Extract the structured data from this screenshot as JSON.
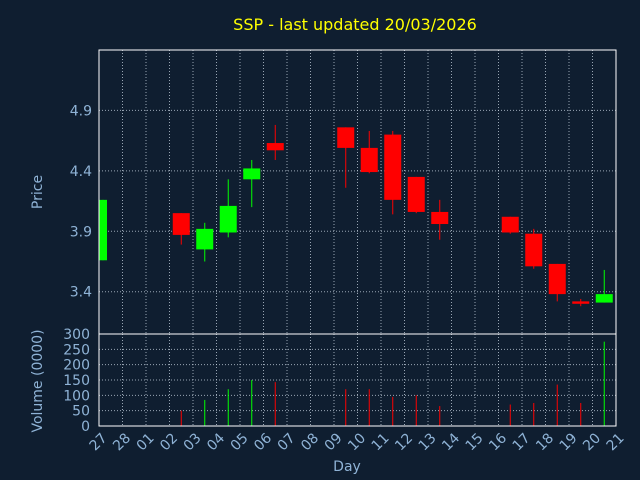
{
  "chart_data": {
    "type": "candlestick",
    "title": "SSP - last updated 20/03/2026",
    "xlabel": "Day",
    "ylabel": "Price",
    "volume_label": "Volume (0000)",
    "x_tick_labels": [
      "27",
      "28",
      "01",
      "02",
      "03",
      "04",
      "05",
      "06",
      "07",
      "08",
      "09",
      "10",
      "11",
      "12",
      "13",
      "14",
      "15",
      "16",
      "17",
      "18",
      "19",
      "20",
      "21"
    ],
    "price_ticks": [
      3.4,
      3.9,
      4.4,
      4.9
    ],
    "price_tick_labels": [
      "3.4",
      "3.9",
      "4.4",
      "4.9"
    ],
    "price_range": [
      3.05,
      5.4
    ],
    "volume_ticks": [
      0,
      50,
      100,
      150,
      200,
      250,
      300
    ],
    "volume_tick_labels": [
      "0",
      "50",
      "100",
      "150",
      "200",
      "250",
      "300"
    ],
    "volume_range": [
      0,
      300
    ],
    "grid": true,
    "colors": {
      "up": "#00ff00",
      "down": "#ff0000",
      "background": "#0f1e30",
      "title": "#ffff00",
      "label": "#8fb3d6"
    },
    "candles": [
      {
        "day": "27",
        "index": 0,
        "open": 3.66,
        "high": 4.16,
        "low": 3.66,
        "close": 4.16
      },
      {
        "day": "02",
        "index": 3,
        "open": 4.05,
        "high": 4.05,
        "low": 3.79,
        "close": 3.87
      },
      {
        "day": "03",
        "index": 4,
        "open": 3.75,
        "high": 3.97,
        "low": 3.65,
        "close": 3.92
      },
      {
        "day": "04",
        "index": 5,
        "open": 3.89,
        "high": 4.33,
        "low": 3.85,
        "close": 4.11
      },
      {
        "day": "05",
        "index": 6,
        "open": 4.33,
        "high": 4.49,
        "low": 4.1,
        "close": 4.42
      },
      {
        "day": "06",
        "index": 7,
        "open": 4.63,
        "high": 4.78,
        "low": 4.49,
        "close": 4.57
      },
      {
        "day": "09",
        "index": 10,
        "open": 4.76,
        "high": 4.76,
        "low": 4.26,
        "close": 4.59
      },
      {
        "day": "10",
        "index": 11,
        "open": 4.59,
        "high": 4.73,
        "low": 4.38,
        "close": 4.39
      },
      {
        "day": "11",
        "index": 12,
        "open": 4.7,
        "high": 4.73,
        "low": 4.04,
        "close": 4.16
      },
      {
        "day": "12",
        "index": 13,
        "open": 4.35,
        "high": 4.35,
        "low": 4.05,
        "close": 4.06
      },
      {
        "day": "13",
        "index": 14,
        "open": 4.06,
        "high": 4.16,
        "low": 3.83,
        "close": 3.96
      },
      {
        "day": "16",
        "index": 17,
        "open": 4.02,
        "high": 4.02,
        "low": 3.88,
        "close": 3.89
      },
      {
        "day": "17",
        "index": 18,
        "open": 3.88,
        "high": 3.92,
        "low": 3.59,
        "close": 3.61
      },
      {
        "day": "18",
        "index": 19,
        "open": 3.63,
        "high": 3.63,
        "low": 3.32,
        "close": 3.38
      },
      {
        "day": "19",
        "index": 20,
        "open": 3.32,
        "high": 3.34,
        "low": 3.28,
        "close": 3.3
      },
      {
        "day": "20",
        "index": 21,
        "open": 3.31,
        "high": 3.58,
        "low": 3.31,
        "close": 3.38
      }
    ],
    "volumes": [
      {
        "day": "02",
        "index": 3,
        "value": 50,
        "direction": "down"
      },
      {
        "day": "03",
        "index": 4,
        "value": 85,
        "direction": "up"
      },
      {
        "day": "04",
        "index": 5,
        "value": 120,
        "direction": "up"
      },
      {
        "day": "05",
        "index": 6,
        "value": 150,
        "direction": "up"
      },
      {
        "day": "06",
        "index": 7,
        "value": 143,
        "direction": "down"
      },
      {
        "day": "09",
        "index": 10,
        "value": 120,
        "direction": "down"
      },
      {
        "day": "10",
        "index": 11,
        "value": 120,
        "direction": "down"
      },
      {
        "day": "11",
        "index": 12,
        "value": 95,
        "direction": "down"
      },
      {
        "day": "12",
        "index": 13,
        "value": 100,
        "direction": "down"
      },
      {
        "day": "13",
        "index": 14,
        "value": 65,
        "direction": "down"
      },
      {
        "day": "16",
        "index": 17,
        "value": 70,
        "direction": "down"
      },
      {
        "day": "17",
        "index": 18,
        "value": 75,
        "direction": "down"
      },
      {
        "day": "18",
        "index": 19,
        "value": 135,
        "direction": "down"
      },
      {
        "day": "19",
        "index": 20,
        "value": 75,
        "direction": "down"
      },
      {
        "day": "20",
        "index": 21,
        "value": 275,
        "direction": "up"
      }
    ]
  }
}
